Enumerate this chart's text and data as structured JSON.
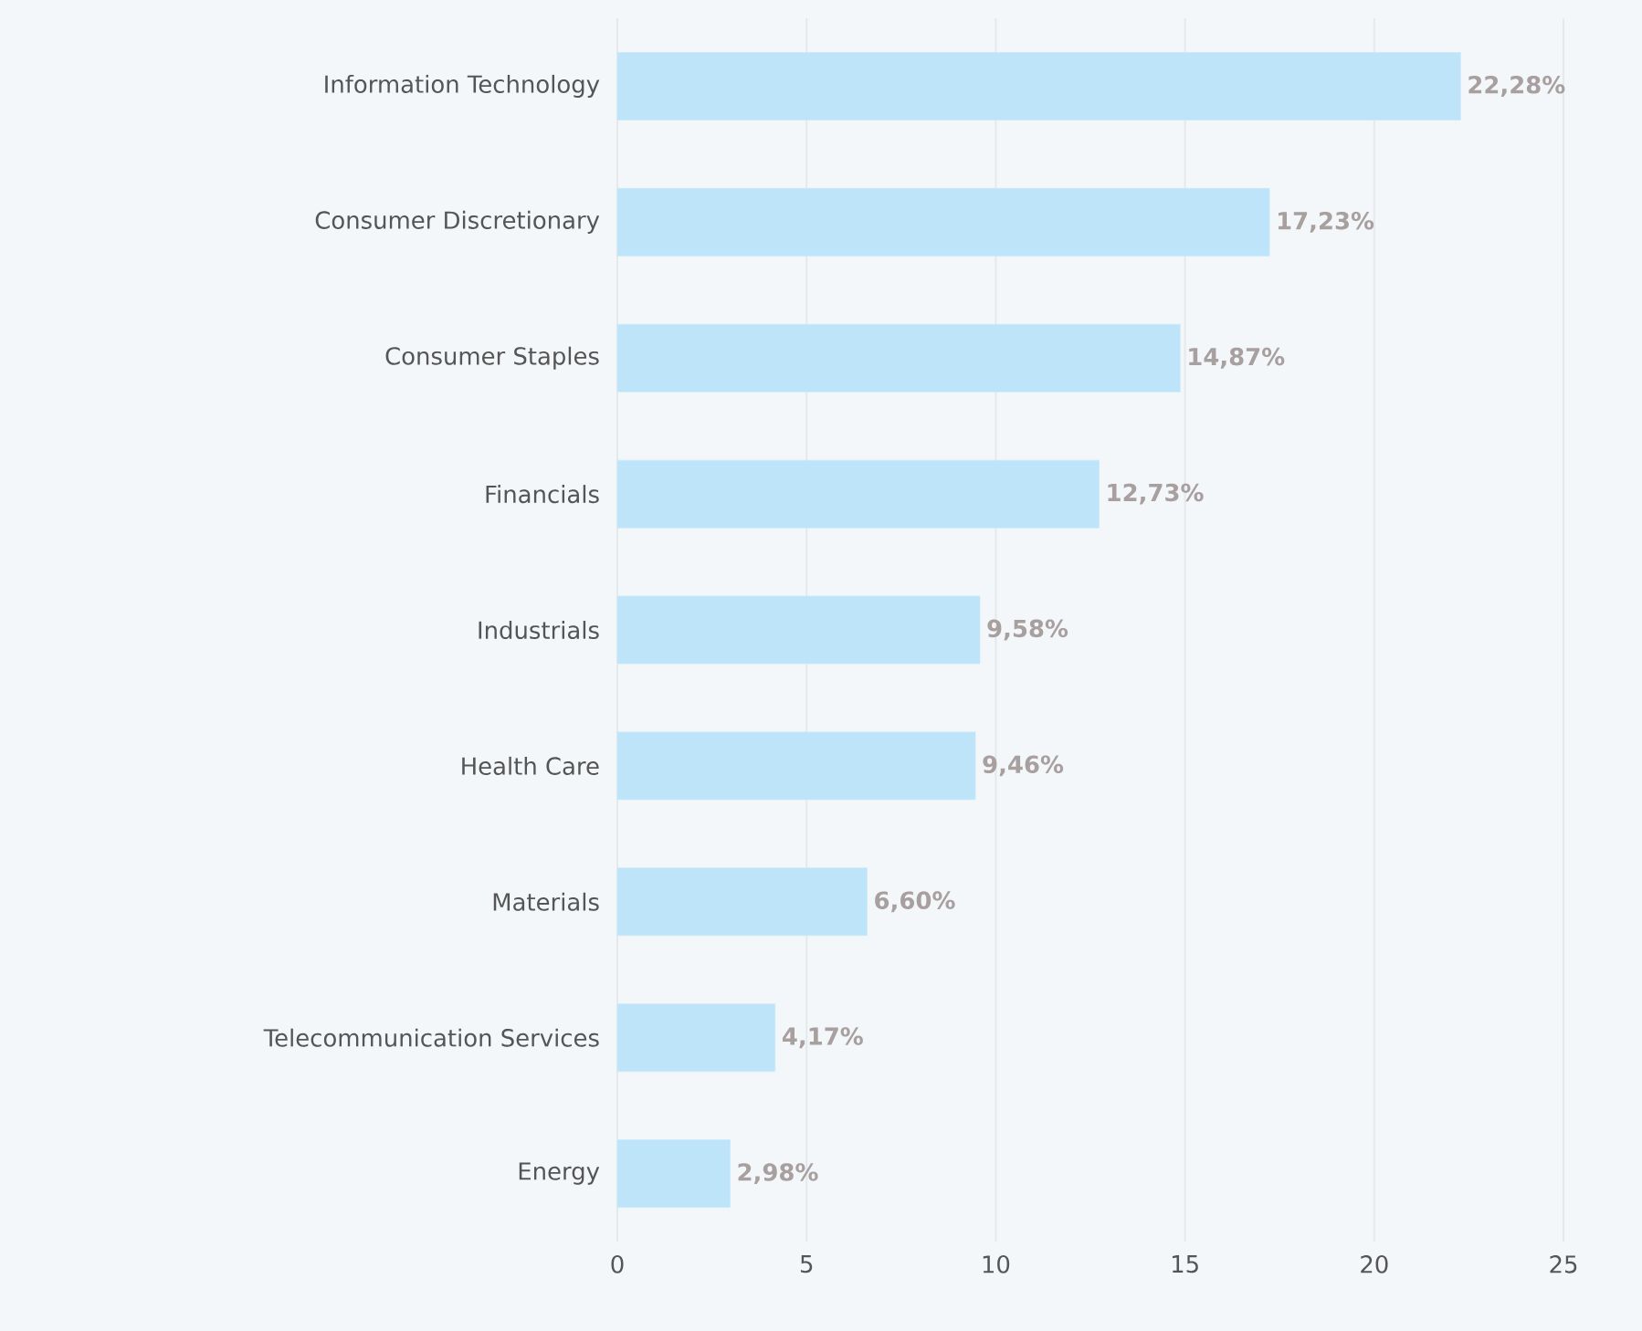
{
  "chart_data": {
    "type": "bar",
    "orientation": "horizontal",
    "categories": [
      "Information Technology",
      "Consumer Discretionary",
      "Consumer Staples",
      "Financials",
      "Industrials",
      "Health Care",
      "Materials",
      "Telecommunication Services",
      "Energy"
    ],
    "values": [
      22.28,
      17.23,
      14.87,
      12.73,
      9.58,
      9.46,
      6.6,
      4.17,
      2.98
    ],
    "value_labels": [
      "22,28%",
      "17,23%",
      "14,87%",
      "12,73%",
      "9,58%",
      "9,46%",
      "6,60%",
      "4,17%",
      "2,98%"
    ],
    "color": "#bde4f9",
    "xlim": [
      0,
      25
    ],
    "xticks": [
      0,
      5,
      10,
      15,
      20,
      25
    ],
    "grid": "x"
  }
}
